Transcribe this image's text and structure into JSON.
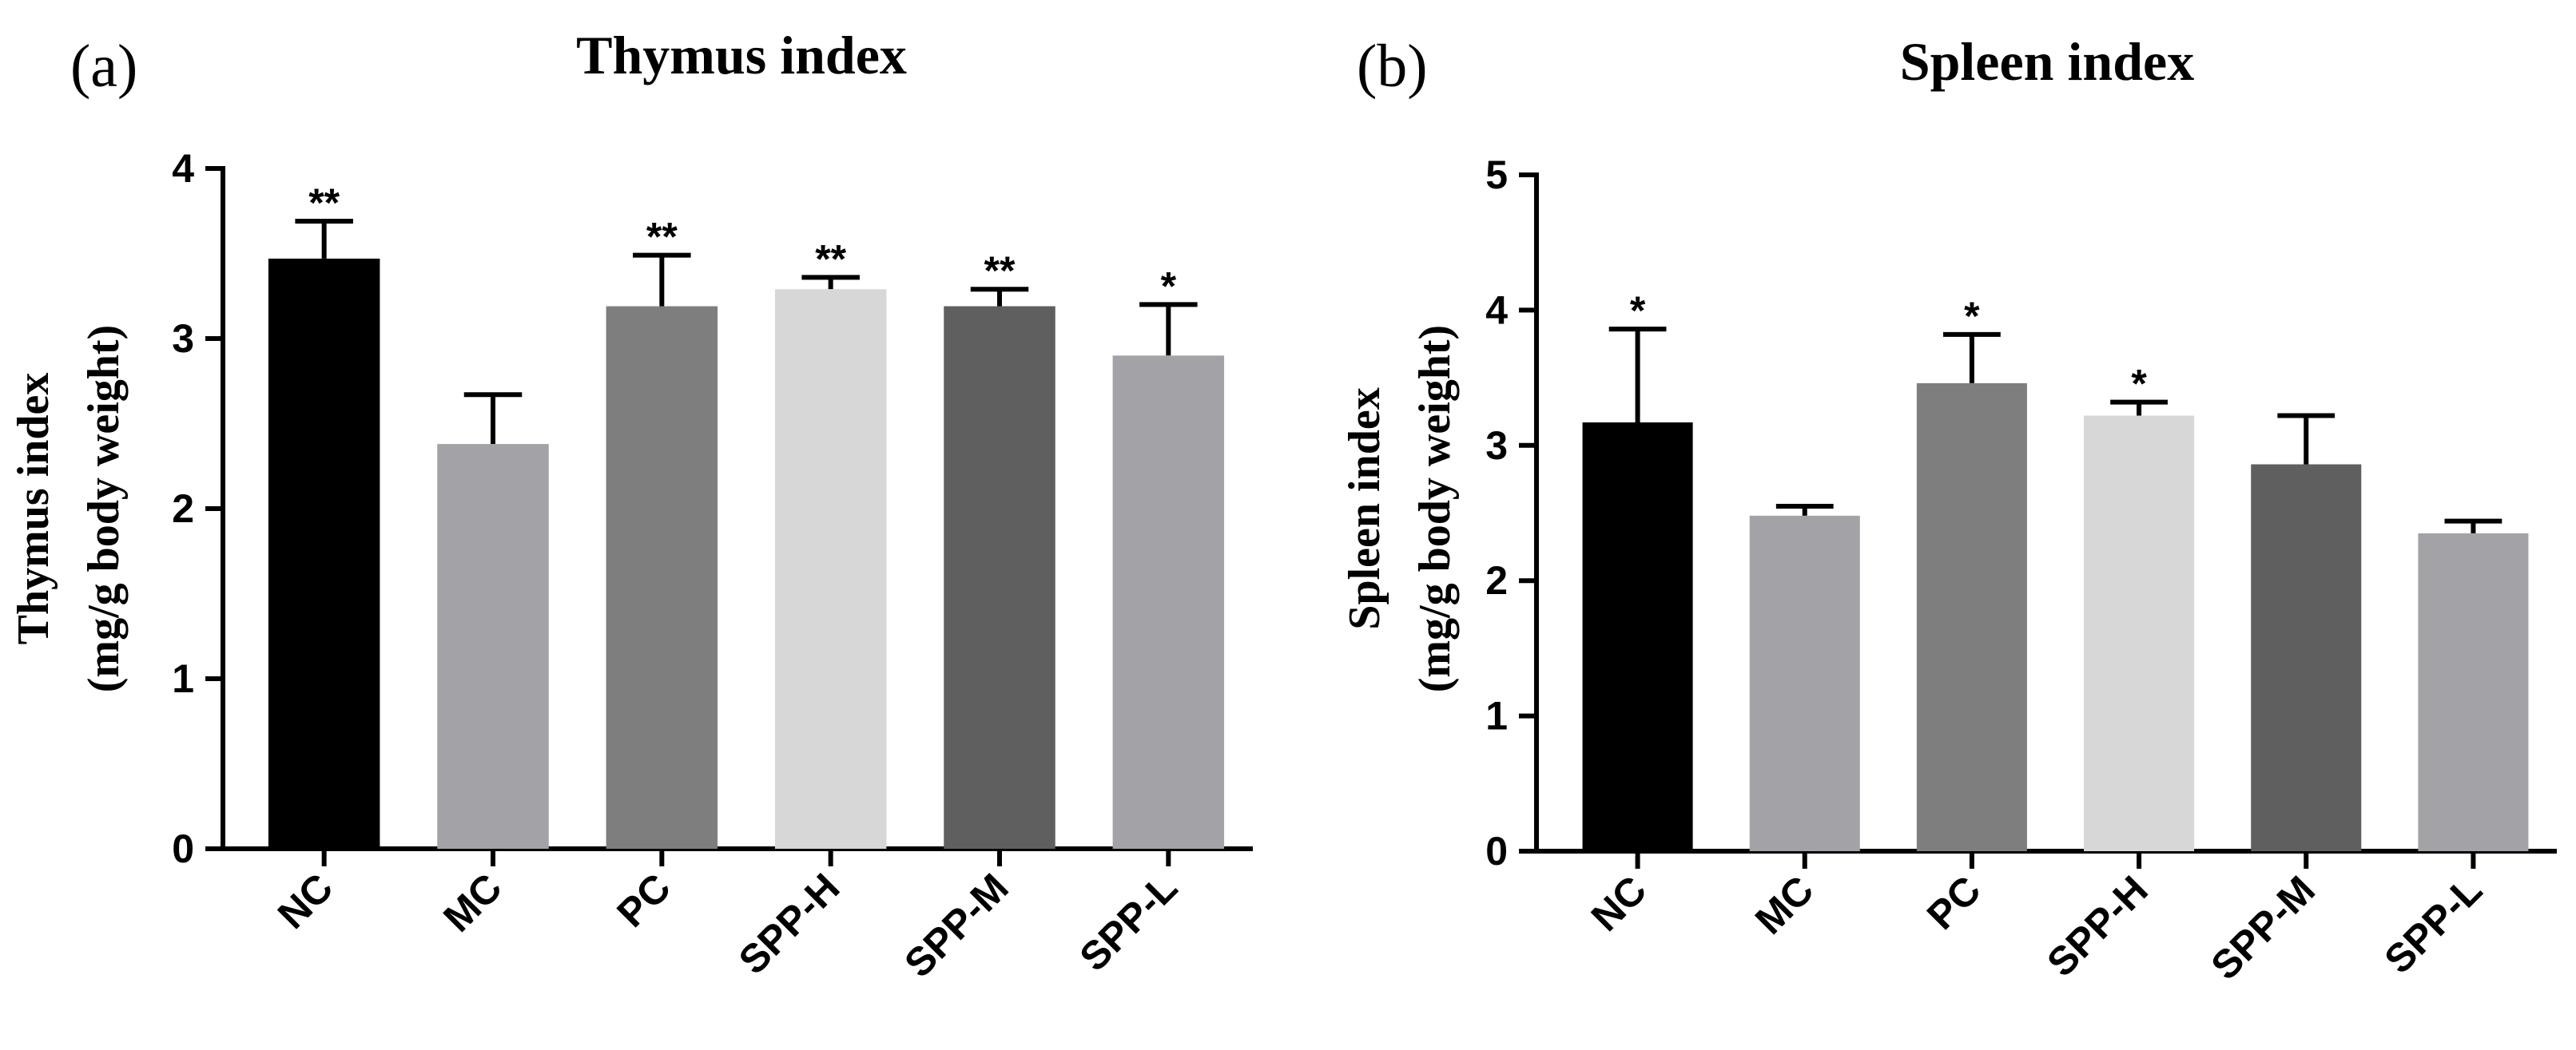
{
  "chart_data": [
    {
      "type": "bar",
      "panel": "(a)",
      "title": "Thymus index",
      "ylabel_line1": "Thymus index",
      "ylabel_line2": "(mg/g body weight)",
      "xlabel": "",
      "ylim": [
        0,
        4
      ],
      "yticks": [
        0,
        1,
        2,
        3,
        4
      ],
      "categories": [
        "NC",
        "MC",
        "PC",
        "SPP-H",
        "SPP-M",
        "SPP-L"
      ],
      "values": [
        3.47,
        2.38,
        3.19,
        3.29,
        3.19,
        2.9
      ],
      "errors": [
        0.22,
        0.29,
        0.3,
        0.07,
        0.1,
        0.3
      ],
      "significance": [
        "**",
        "",
        "**",
        "**",
        "**",
        "*"
      ],
      "colors": [
        "#000000",
        "#a3a3a7",
        "#7e7e7e",
        "#d7d7d7",
        "#5f5f5f",
        "#a3a3a7"
      ]
    },
    {
      "type": "bar",
      "panel": "(b)",
      "title": "Spleen index",
      "ylabel_line1": "Spleen index",
      "ylabel_line2": "(mg/g body weight)",
      "xlabel": "",
      "ylim": [
        0,
        5
      ],
      "yticks": [
        0,
        1,
        2,
        3,
        4,
        5
      ],
      "categories": [
        "NC",
        "MC",
        "PC",
        "SPP-H",
        "SPP-M",
        "SPP-L"
      ],
      "values": [
        3.17,
        2.48,
        3.46,
        3.22,
        2.86,
        2.35
      ],
      "errors": [
        0.69,
        0.07,
        0.36,
        0.1,
        0.36,
        0.09
      ],
      "significance": [
        "*",
        "",
        "*",
        "*",
        "",
        ""
      ],
      "colors": [
        "#000000",
        "#a3a3a7",
        "#7e7e7e",
        "#d7d7d7",
        "#5f5f5f",
        "#a3a3a7"
      ]
    }
  ]
}
